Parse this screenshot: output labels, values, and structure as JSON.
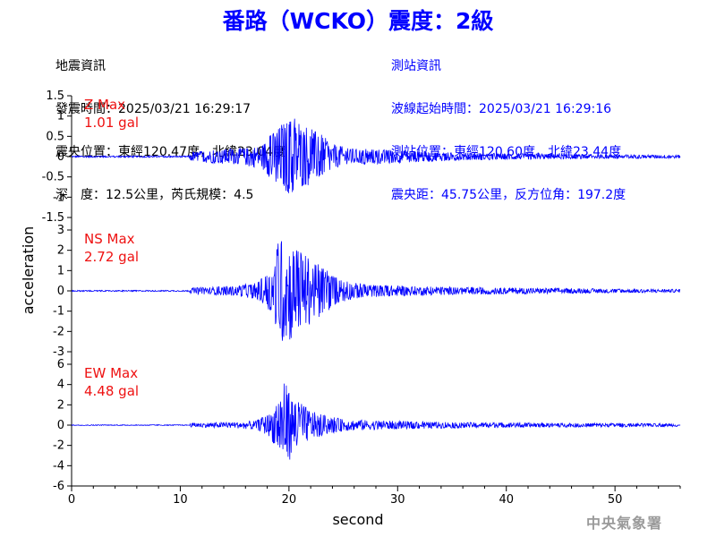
{
  "title": "番路（WCKO）震度：2級",
  "event_info": {
    "heading": "地震資訊",
    "time": "發震時間：2025/03/21 16:29:17",
    "epicenter": "震央位置：東經120.47度，北緯23.04度",
    "depth_magnitude": "深　度：12.5公里，芮氏規模：4.5"
  },
  "station_info": {
    "heading": "測站資訊",
    "wave_start": "波線起始時間：2025/03/21 16:29:16",
    "location": "測站位置：東經120.60度，北緯23.44度",
    "distance": "震央距：45.75公里，反方位角：197.2度"
  },
  "agency": "中央氣象署",
  "colors": {
    "title": "#0000ff",
    "trace": "#0000ff",
    "max_label": "#ee1111",
    "station_text": "#0000ff"
  },
  "chart_data": {
    "type": "line",
    "xlabel": "second",
    "ylabel": "acceleration",
    "xlim": [
      0,
      56
    ],
    "xticks": [
      0,
      10,
      20,
      30,
      40,
      50
    ],
    "grid": false,
    "panels": [
      {
        "name": "Z",
        "max_label": "Z Max",
        "max_value": "1.01 gal",
        "ylim": [
          -1.5,
          1.5
        ],
        "yticks": [
          1.5,
          1,
          0.5,
          0,
          -0.5,
          -1,
          -1.5
        ],
        "envelope": [
          [
            0,
            0.02
          ],
          [
            10.8,
            0.02
          ],
          [
            11,
            0.12
          ],
          [
            12,
            0.15
          ],
          [
            14,
            0.18
          ],
          [
            16,
            0.22
          ],
          [
            17.5,
            0.3
          ],
          [
            18.5,
            0.6
          ],
          [
            19.5,
            0.85
          ],
          [
            20.3,
            1.01
          ],
          [
            21,
            0.8
          ],
          [
            22,
            0.7
          ],
          [
            22.8,
            0.6
          ],
          [
            24,
            0.3
          ],
          [
            26,
            0.2
          ],
          [
            30,
            0.16
          ],
          [
            35,
            0.1
          ],
          [
            40,
            0.08
          ],
          [
            45,
            0.06
          ],
          [
            50,
            0.05
          ],
          [
            56,
            0.04
          ]
        ]
      },
      {
        "name": "NS",
        "max_label": "NS Max",
        "max_value": "2.72 gal",
        "ylim": [
          -3,
          3
        ],
        "yticks": [
          3,
          2,
          1,
          0,
          -1,
          -2,
          -3
        ],
        "envelope": [
          [
            0,
            0.03
          ],
          [
            10.8,
            0.03
          ],
          [
            11,
            0.15
          ],
          [
            13,
            0.2
          ],
          [
            15,
            0.25
          ],
          [
            17,
            0.4
          ],
          [
            18.3,
            1.0
          ],
          [
            19,
            2.5
          ],
          [
            19.6,
            2.72
          ],
          [
            20.5,
            2.4
          ],
          [
            21.5,
            1.8
          ],
          [
            22.5,
            1.5
          ],
          [
            23.5,
            1.1
          ],
          [
            24.5,
            0.6
          ],
          [
            26,
            0.4
          ],
          [
            28,
            0.3
          ],
          [
            32,
            0.22
          ],
          [
            38,
            0.17
          ],
          [
            45,
            0.13
          ],
          [
            50,
            0.1
          ],
          [
            56,
            0.08
          ]
        ]
      },
      {
        "name": "EW",
        "max_label": "EW Max",
        "max_value": "4.48 gal",
        "ylim": [
          -6,
          6
        ],
        "yticks": [
          6,
          4,
          2,
          0,
          -2,
          -4,
          -6
        ],
        "envelope": [
          [
            0,
            0.04
          ],
          [
            10.8,
            0.04
          ],
          [
            11,
            0.2
          ],
          [
            13,
            0.25
          ],
          [
            15,
            0.3
          ],
          [
            17,
            0.45
          ],
          [
            18.3,
            1.2
          ],
          [
            19.2,
            3.5
          ],
          [
            19.5,
            4.48
          ],
          [
            20.3,
            3.0
          ],
          [
            21,
            2.2
          ],
          [
            22,
            1.5
          ],
          [
            23.5,
            0.9
          ],
          [
            25,
            0.6
          ],
          [
            28,
            0.45
          ],
          [
            32,
            0.35
          ],
          [
            38,
            0.25
          ],
          [
            45,
            0.2
          ],
          [
            50,
            0.18
          ],
          [
            56,
            0.15
          ]
        ]
      }
    ]
  }
}
